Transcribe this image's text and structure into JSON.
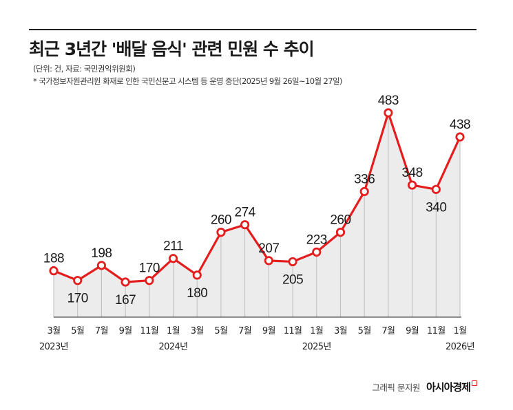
{
  "header": {
    "title": "최근 3년간 '배달 음식' 관련 민원 수 추이",
    "unit": "(단위: 건, 자료: 국민권익위원회)",
    "note": "* 국가정보자원관리원 화재로 인한 국민신문고 시스템 등 운영 중단(2025년 9월 26일~10월 27일)"
  },
  "footer": {
    "credit": "그래픽 문지원",
    "brand": "아시아경제"
  },
  "colors": {
    "line": "#e41e1e",
    "area": "#ececec",
    "axis": "#222222"
  },
  "chart_data": {
    "type": "line",
    "title": "최근 3년간 '배달 음식' 관련 민원 수 추이",
    "xlabel": "",
    "ylabel": "",
    "ylim": [
      150,
      500
    ],
    "grid": false,
    "categories": [
      "3월",
      "5월",
      "7월",
      "9월",
      "11월",
      "1월",
      "3월",
      "5월",
      "7월",
      "9월",
      "11월",
      "1월",
      "3월",
      "5월",
      "7월",
      "9월",
      "11월",
      "1월"
    ],
    "year_labels": [
      {
        "index": 0,
        "label": "2023년"
      },
      {
        "index": 5,
        "label": "2024년"
      },
      {
        "index": 11,
        "label": "2025년"
      },
      {
        "index": 17,
        "label": "2026년"
      }
    ],
    "series": [
      {
        "values": [
          188,
          170,
          198,
          167,
          170,
          211,
          180,
          260,
          274,
          207,
          205,
          223,
          260,
          336,
          483,
          348,
          340,
          438
        ]
      }
    ]
  }
}
